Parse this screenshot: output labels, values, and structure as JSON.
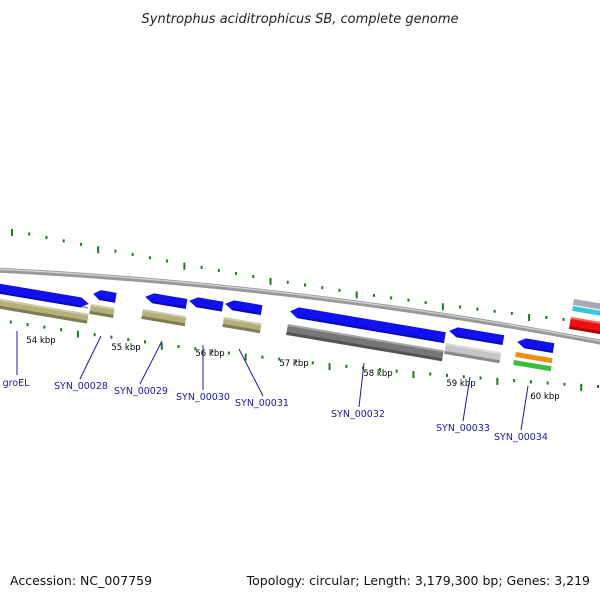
{
  "title": "Syntrophus aciditrophicus SB, complete genome",
  "footer": {
    "accession": "Accession: NC_007759",
    "summary": "Topology: circular; Length: 3,179,300 bp; Genes: 3,219"
  },
  "scale_labels": [
    "54 kbp",
    "55 kbp",
    "56 kbp",
    "57 kbp",
    "58 kbp",
    "59 kbp",
    "60 kbp"
  ],
  "gene_labels": [
    "groEL",
    "SYN_00028",
    "SYN_00029",
    "SYN_00030",
    "SYN_00031",
    "SYN_00032",
    "SYN_00033",
    "SYN_00034"
  ],
  "colors": {
    "cds": "#1010f0",
    "gene_feature": "#b5b07a",
    "gene_feature_dark": "#7d7848",
    "gene_feature_gray": "#777777",
    "gene_feature_light": "#c6c6c6",
    "backbone": "#999999",
    "tick": "#1e7a1e",
    "label": "#1a1aa6",
    "orange": "#f08c10",
    "green": "#38c038",
    "red": "#ee1111",
    "cyan": "#35c8dc",
    "gray_feature": "#a8a8b8"
  }
}
